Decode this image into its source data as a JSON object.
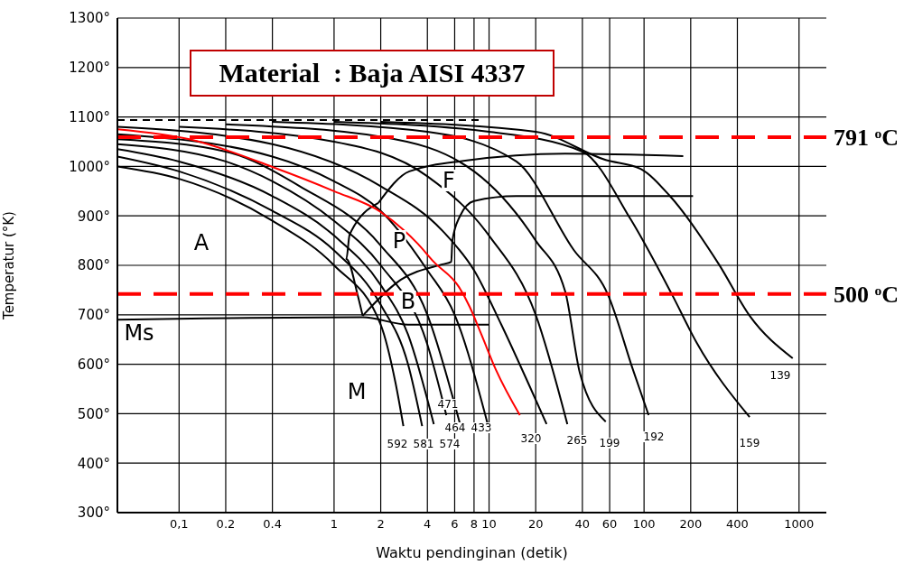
{
  "chart_data": {
    "type": "line",
    "title": "Material  : Baja AISI 4337",
    "xlabel": "Waktu pendinginan (detik)",
    "ylabel": "Temperatur (°K)",
    "log": "x",
    "grid": true,
    "marker": "none",
    "line_style": "solid",
    "xlim": [
      0.04,
      1500
    ],
    "xticks": [
      {
        "value": 0.1,
        "label": "0,1"
      },
      0.2,
      0.4,
      1,
      2,
      4,
      6,
      8,
      10,
      20,
      40,
      60,
      100,
      200,
      400,
      1000
    ],
    "ylim": [
      300,
      1300
    ],
    "yticks": [
      {
        "value": 300,
        "label": "300°"
      },
      {
        "value": 400,
        "label": "400°"
      },
      {
        "value": 500,
        "label": "500°"
      },
      {
        "value": 600,
        "label": "600°"
      },
      {
        "value": 700,
        "label": "700°"
      },
      {
        "value": 800,
        "label": "800°"
      },
      {
        "value": 900,
        "label": "900°"
      },
      {
        "value": 1000,
        "label": "1000°"
      },
      {
        "value": 1100,
        "label": "1100°"
      },
      {
        "value": 1200,
        "label": "1200°"
      },
      {
        "value": 1300,
        "label": "1300°"
      }
    ],
    "series": [
      {
        "color": "#000000",
        "x": [
          0.04,
          0.1,
          0.4,
          1,
          2,
          2.5,
          2.8
        ],
        "values": [
          1000,
          975,
          890,
          800,
          680,
          560,
          475
        ]
      },
      {
        "color": "#000000",
        "x": [
          0.04,
          0.1,
          0.4,
          1,
          2,
          3,
          3.7
        ],
        "values": [
          1020,
          990,
          910,
          830,
          720,
          600,
          475
        ]
      },
      {
        "color": "#000000",
        "x": [
          0.04,
          0.1,
          0.4,
          1,
          2,
          3,
          4.4
        ],
        "values": [
          1035,
          1010,
          940,
          860,
          760,
          660,
          479
        ]
      },
      {
        "color": "#000000",
        "x": [
          0.04,
          0.2,
          0.4,
          1,
          2,
          4,
          5.3
        ],
        "values": [
          1045,
          1010,
          970,
          890,
          800,
          640,
          497
        ]
      },
      {
        "color": "#000000",
        "x": [
          0.04,
          0.2,
          0.6,
          2,
          4,
          6.5
        ],
        "values": [
          1055,
          1030,
          960,
          840,
          700,
          479
        ]
      },
      {
        "color": "#000000",
        "x": [
          0.04,
          0.4,
          1,
          2,
          4,
          6,
          9.8
        ],
        "values": [
          1065,
          1020,
          970,
          910,
          790,
          700,
          479
        ]
      },
      {
        "color": "#000000",
        "x": [
          0.04,
          0.4,
          2,
          5,
          8,
          12,
          18,
          23.5
        ],
        "values": [
          1080,
          1045,
          960,
          870,
          790,
          680,
          560,
          479
        ]
      },
      {
        "color": "#000000",
        "x": [
          0.1,
          1,
          4,
          10,
          20,
          32
        ],
        "values": [
          1080,
          1050,
          980,
          860,
          700,
          479
        ]
      },
      {
        "color": "#000000",
        "x": [
          0.2,
          2,
          8,
          20,
          31,
          38.5,
          56.6
        ],
        "values": [
          1085,
          1060,
          990,
          850,
          747,
          583,
          484
        ]
      },
      {
        "color": "#000000",
        "x": [
          0.4,
          4,
          15,
          35.2,
          58.6,
          85,
          107
        ],
        "values": [
          1090,
          1070,
          1010,
          831,
          740,
          588,
          497
        ]
      },
      {
        "color": "#000000",
        "x": [
          1,
          10,
          40,
          82,
          152,
          219,
          480
        ],
        "values": [
          1090,
          1070,
          1030,
          893,
          740,
          643,
          493
        ]
      },
      {
        "color": "#000000",
        "x": [
          2,
          20,
          56.6,
          95,
          147,
          304,
          480,
          910
        ],
        "values": [
          1090,
          1070,
          1013,
          995,
          940,
          802,
          698,
          612
        ]
      },
      {
        "color": "#000000",
        "line_style": "dashed",
        "x": [
          0.04,
          8.7
        ],
        "values": [
          1094,
          1094
        ]
      },
      {
        "color": "#000000",
        "x": [
          1.93,
          3.06,
          7.2,
          31,
          179
        ],
        "values": [
          926,
          990,
          1012,
          1026,
          1021
        ]
      },
      {
        "color": "#000000",
        "x": [
          1.93,
          1.26,
          1.2,
          1.42,
          1.53
        ],
        "values": [
          926,
          862,
          813,
          740,
          698
        ]
      },
      {
        "color": "#000000",
        "x": [
          1.53,
          2.7,
          5,
          5.7,
          5.8,
          6.5,
          8,
          15,
          207
        ],
        "values": [
          698,
          771,
          802,
          807,
          850,
          900,
          930,
          940,
          940
        ]
      },
      {
        "color": "#000000",
        "x": [
          0.04,
          1.53,
          3,
          8,
          10
        ],
        "values": [
          690,
          695,
          680,
          680,
          680
        ]
      },
      {
        "color": "#ff0000",
        "x": [
          0.04,
          0.12,
          0.4,
          1,
          2,
          3.46,
          4.4,
          6.4,
          7.5,
          8.9,
          11.1,
          15.8
        ],
        "values": [
          1075,
          1054,
          999,
          950,
          908,
          844,
          807,
          756,
          716,
          661,
          588,
          497
        ]
      }
    ],
    "ref_lines": [
      {
        "axis": "y",
        "value": 1059,
        "label": "791 $^{o}$C",
        "color": "#ff0000",
        "line_style": "dashed"
      },
      {
        "axis": "y",
        "value": 742,
        "label": "500 $^{o}$C",
        "color": "#ff0000",
        "line_style": "dashed"
      }
    ],
    "annotations": [
      "A",
      "F",
      "P",
      "B",
      "M",
      "Ms",
      "592",
      "581",
      "574",
      "471",
      "464",
      "433",
      "320",
      "265",
      "199",
      "192",
      "159",
      "139"
    ]
  }
}
